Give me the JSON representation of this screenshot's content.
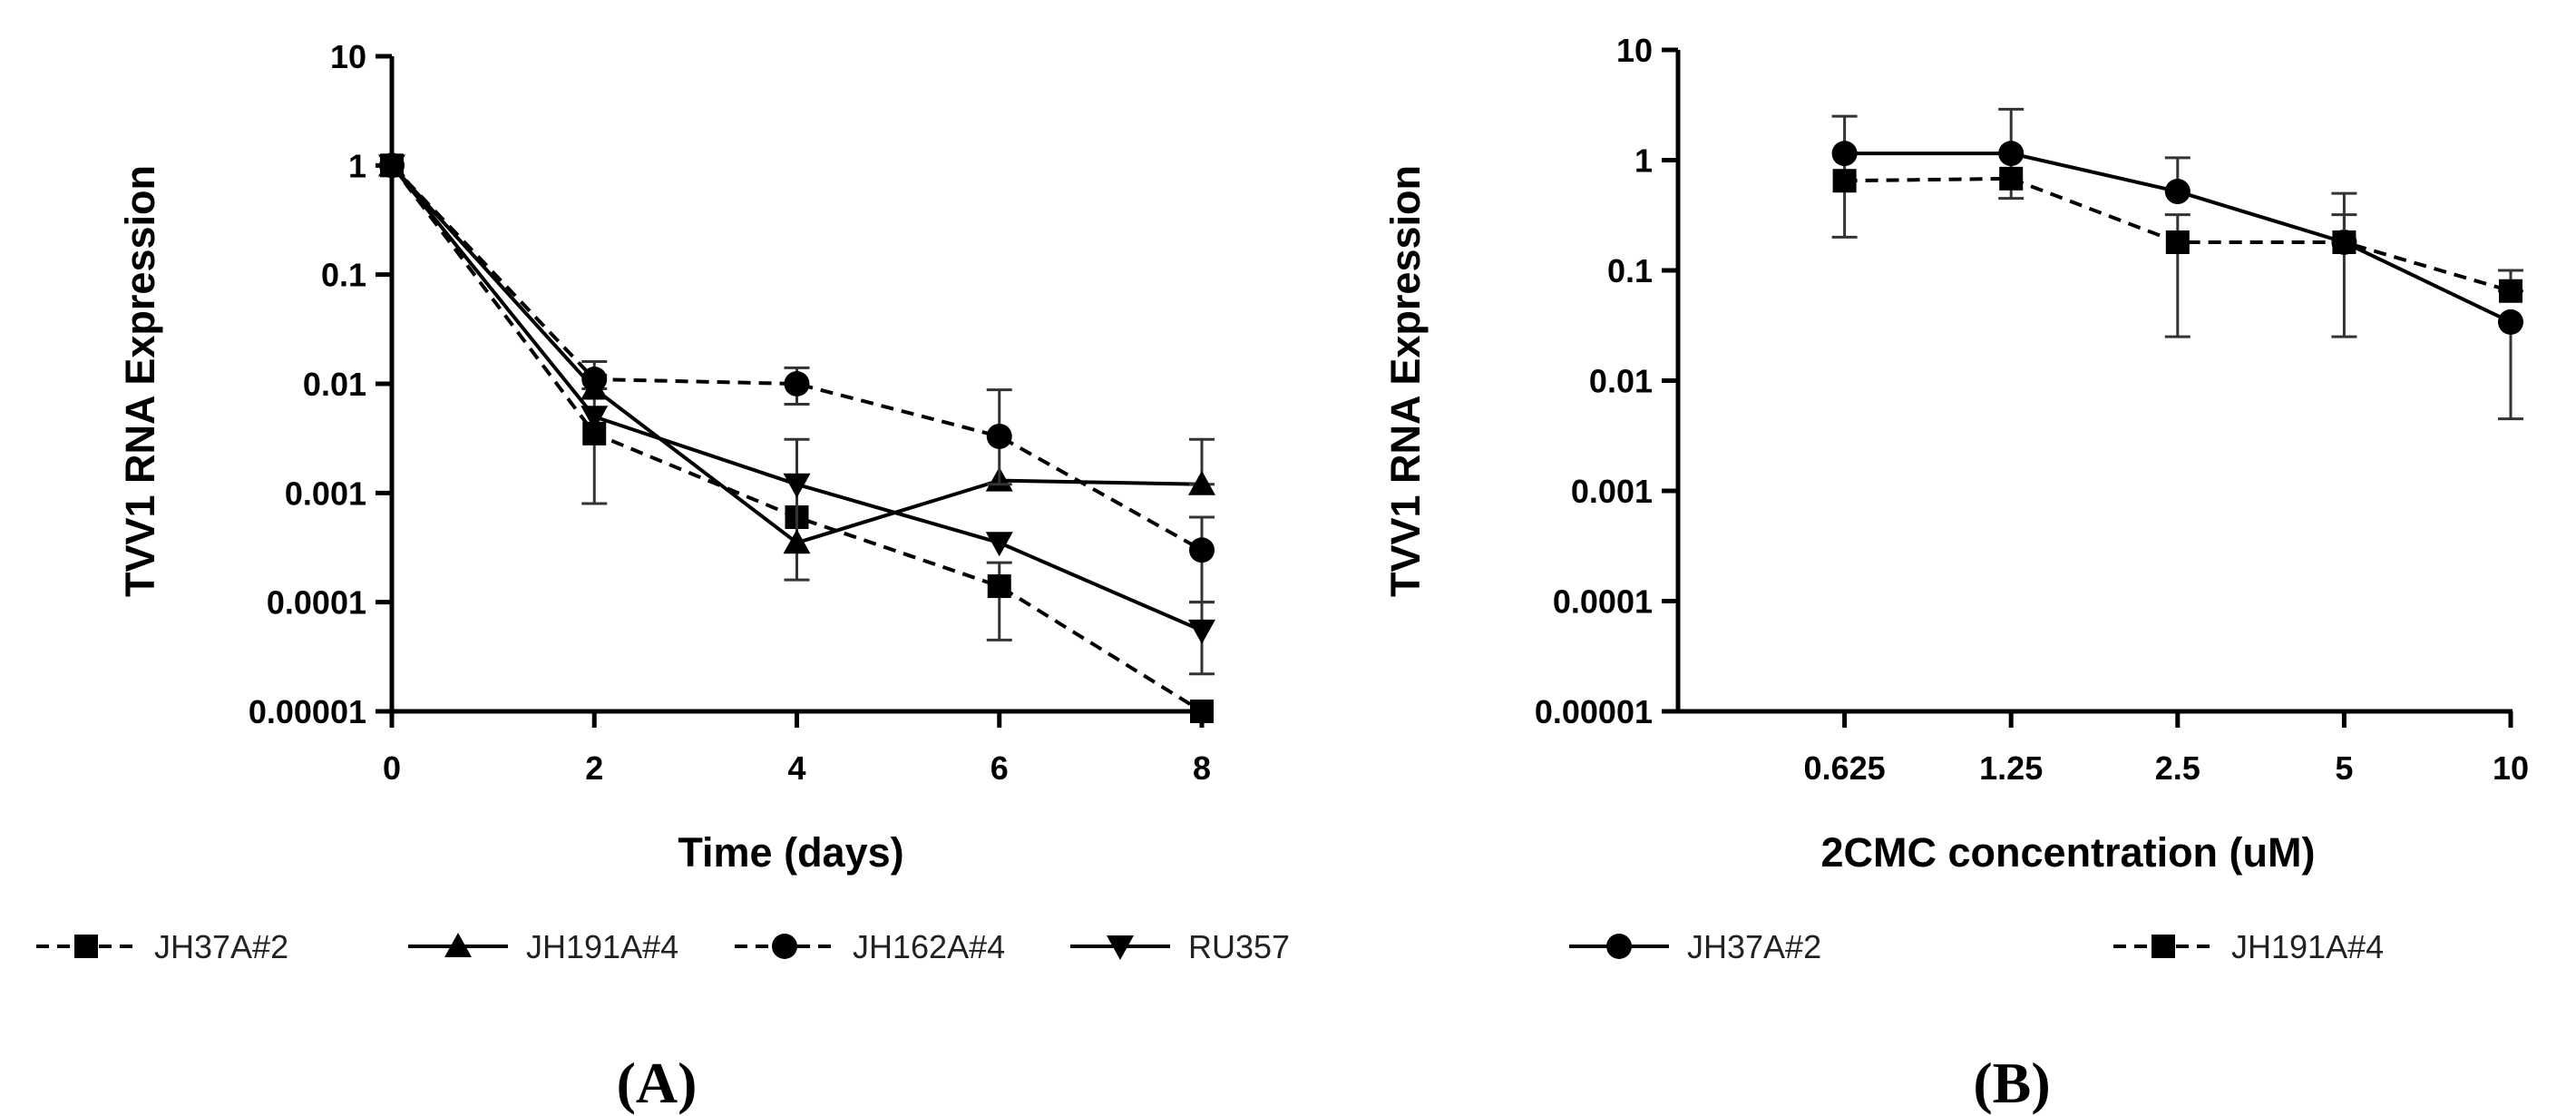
{
  "chart_data": [
    {
      "type": "line",
      "panel_label": "(A)",
      "xlabel": "Time (days)",
      "ylabel": "TVV1 RNA Expression",
      "yscale": "log",
      "ylim": [
        1e-05,
        10
      ],
      "y_ticks": [
        {
          "value": 10,
          "label": "10"
        },
        {
          "value": 1,
          "label": "1"
        },
        {
          "value": 0.1,
          "label": "0.1"
        },
        {
          "value": 0.01,
          "label": "0.01"
        },
        {
          "value": 0.001,
          "label": "0.001"
        },
        {
          "value": 0.0001,
          "label": "0.0001"
        },
        {
          "value": 1e-05,
          "label": "0.00001"
        }
      ],
      "xlim": [
        0,
        8
      ],
      "x_ticks": [
        {
          "value": 0,
          "label": "0"
        },
        {
          "value": 2,
          "label": "2"
        },
        {
          "value": 4,
          "label": "4"
        },
        {
          "value": 6,
          "label": "6"
        },
        {
          "value": 8,
          "label": "8"
        }
      ],
      "series": [
        {
          "name": "JH37A#2",
          "marker": "square",
          "dashed": true,
          "x": [
            0,
            2,
            4,
            6,
            8
          ],
          "y": [
            1,
            0.0035,
            0.0006,
            0.00014,
            1e-05
          ],
          "err_low": [
            1,
            0.0008,
            0.0006,
            4.5e-05,
            1e-05
          ],
          "err_high": [
            1,
            0.012,
            0.0006,
            0.00023,
            1e-05
          ]
        },
        {
          "name": "JH191A#4",
          "marker": "triangle-up",
          "dashed": false,
          "x": [
            0,
            2,
            4,
            6,
            8
          ],
          "y": [
            1,
            0.009,
            0.00035,
            0.0013,
            0.0012
          ],
          "err_low": [
            1,
            0.009,
            0.00016,
            0.0013,
            0.0012
          ],
          "err_high": [
            1,
            0.016,
            0.0031,
            0.0013,
            0.0031
          ]
        },
        {
          "name": "JH162A#4",
          "marker": "circle",
          "dashed": true,
          "x": [
            0,
            2,
            4,
            6,
            8
          ],
          "y": [
            1,
            0.011,
            0.01,
            0.0033,
            0.0003
          ],
          "err_low": [
            1,
            0.011,
            0.0065,
            0.0012,
            0.0001
          ],
          "err_high": [
            1,
            0.011,
            0.014,
            0.0088,
            0.0006
          ]
        },
        {
          "name": "RU357",
          "marker": "triangle-down",
          "dashed": false,
          "x": [
            0,
            2,
            4,
            6,
            8
          ],
          "y": [
            1,
            0.005,
            0.0012,
            0.00035,
            5.5e-05
          ],
          "err_low": [
            1,
            0.005,
            0.0012,
            0.00035,
            2.2e-05
          ],
          "err_high": [
            1,
            0.005,
            0.0012,
            0.00035,
            0.0001
          ]
        }
      ]
    },
    {
      "type": "line",
      "panel_label": "(B)",
      "xlabel": "2CMC concentration (uM)",
      "ylabel": "TVV1 RNA Expression",
      "yscale": "log",
      "ylim": [
        1e-05,
        10
      ],
      "y_ticks": [
        {
          "value": 10,
          "label": "10"
        },
        {
          "value": 1,
          "label": "1"
        },
        {
          "value": 0.1,
          "label": "0.1"
        },
        {
          "value": 0.01,
          "label": "0.01"
        },
        {
          "value": 0.001,
          "label": "0.001"
        },
        {
          "value": 0.0001,
          "label": "0.0001"
        },
        {
          "value": 1e-05,
          "label": "0.00001"
        }
      ],
      "categories": [
        "0.625",
        "1.25",
        "2.5",
        "5",
        "10"
      ],
      "series": [
        {
          "name": "JH37A#2",
          "marker": "circle",
          "dashed": false,
          "y": [
            1.15,
            1.15,
            0.52,
            0.18,
            0.034
          ],
          "err_low": [
            0.2,
            0.45,
            0.52,
            0.025,
            0.0045
          ],
          "err_high": [
            2.5,
            2.9,
            1.05,
            0.5,
            0.034
          ]
        },
        {
          "name": "JH191A#4",
          "marker": "square",
          "dashed": true,
          "y": [
            0.65,
            0.68,
            0.18,
            0.18,
            0.065
          ],
          "err_low": [
            0.65,
            0.68,
            0.025,
            0.18,
            0.065
          ],
          "err_high": [
            0.65,
            0.68,
            0.32,
            0.32,
            0.1
          ]
        }
      ]
    }
  ]
}
